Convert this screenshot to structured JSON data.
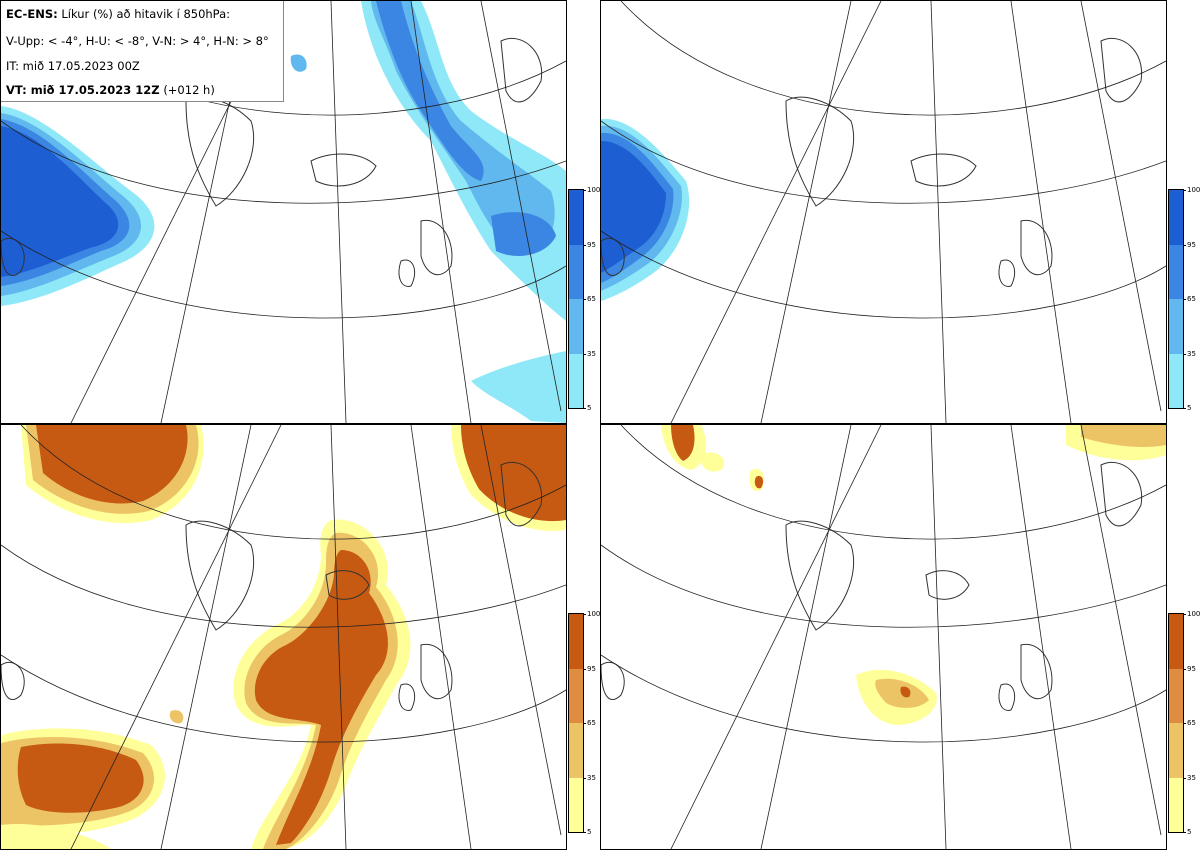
{
  "legend": {
    "product": "EC-ENS:",
    "description": "Líkur (%) að hitavik í 850hPa:",
    "thresholds": "V-Upp: < -4°, H-U: < -8°, V-N: > 4°, H-N: > 8°",
    "initial_time": "IT: mið 17.05.2023 00Z",
    "valid_label": "VT: mið 17.05.2023 12Z",
    "lead_time": "(+012 h)"
  },
  "panels": [
    {
      "id": "cold-4",
      "label": "V-Upp",
      "scheme": "blue"
    },
    {
      "id": "cold-8",
      "label": "H-U",
      "scheme": "blue"
    },
    {
      "id": "warm-4",
      "label": "V-N",
      "scheme": "orange"
    },
    {
      "id": "warm-8",
      "label": "H-N",
      "scheme": "orange"
    }
  ],
  "colorbar": {
    "ticks": [
      "100",
      "95",
      "65",
      "35",
      "5"
    ],
    "blue_colors": [
      "#1d5fd2",
      "#3a86e2",
      "#61b8ee",
      "#8ee8f7"
    ],
    "orange_colors": [
      "#c65a12",
      "#de8c42",
      "#ecc466",
      "#ffff99"
    ]
  }
}
